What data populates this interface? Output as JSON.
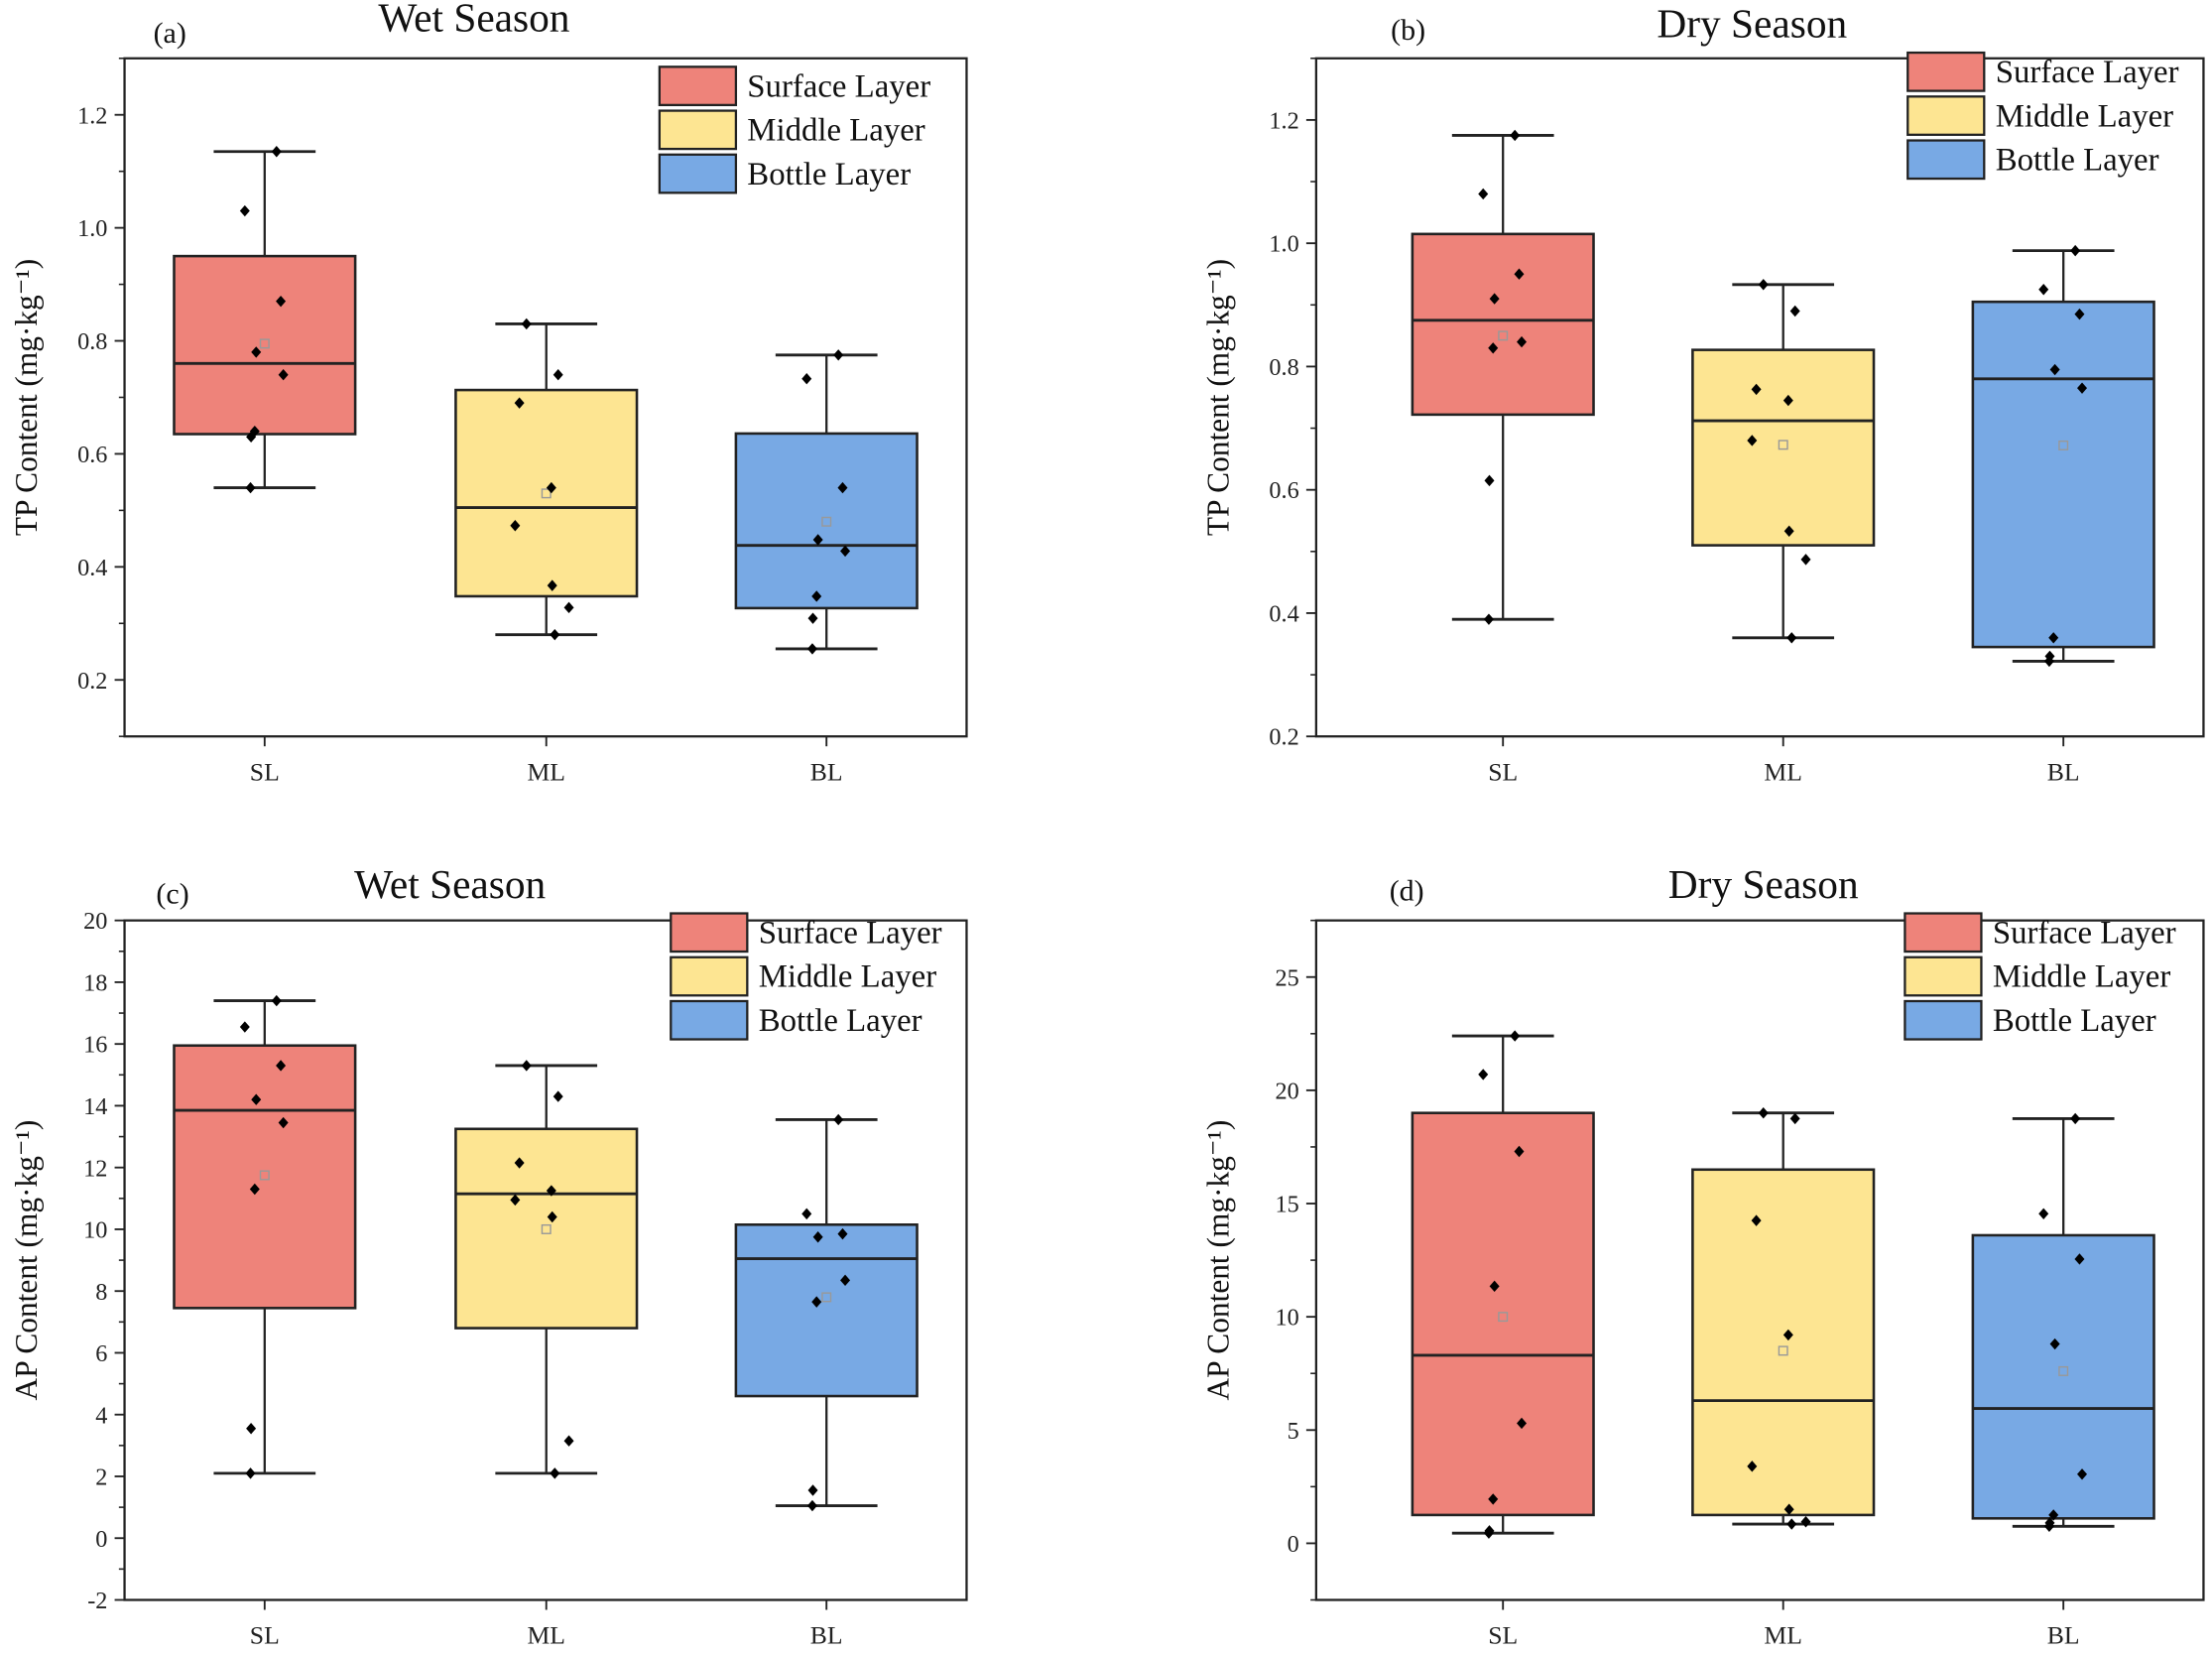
{
  "colors": {
    "SL": "#EE837A",
    "ML": "#FDE592",
    "BL": "#78A9E4",
    "mean": "#999999"
  },
  "legend": [
    "Surface Layer",
    "Middle Layer",
    "Bottle Layer"
  ],
  "chart_data": [
    {
      "type": "box",
      "panel": "(a)",
      "title": "Wet Season",
      "ylabel": "TP Content (mg·kg⁻¹)",
      "ylim": [
        0.1,
        1.3
      ],
      "yticks": [
        0.2,
        0.4,
        0.6,
        0.8,
        1.0,
        1.2
      ],
      "tick_decimals": 1,
      "categories": [
        "SL",
        "ML",
        "BL"
      ],
      "boxes": [
        {
          "min": 0.54,
          "q1": 0.635,
          "median": 0.76,
          "q3": 0.95,
          "max": 1.135,
          "mean": 0.795,
          "points": [
            1.135,
            1.03,
            0.87,
            0.78,
            0.74,
            0.64,
            0.63,
            0.54
          ]
        },
        {
          "min": 0.28,
          "q1": 0.348,
          "median": 0.505,
          "q3": 0.713,
          "max": 0.83,
          "mean": 0.53,
          "points": [
            0.83,
            0.74,
            0.69,
            0.54,
            0.473,
            0.367,
            0.328,
            0.28
          ]
        },
        {
          "min": 0.255,
          "q1": 0.327,
          "median": 0.438,
          "q3": 0.636,
          "max": 0.775,
          "mean": 0.48,
          "points": [
            0.775,
            0.733,
            0.54,
            0.448,
            0.428,
            0.348,
            0.309,
            0.255
          ]
        }
      ]
    },
    {
      "type": "box",
      "panel": "(b)",
      "title": "Dry Season",
      "ylabel": "TP Content (mg·kg⁻¹)",
      "ylim": [
        0.2,
        1.3
      ],
      "yticks": [
        0.2,
        0.4,
        0.6,
        0.8,
        1.0,
        1.2
      ],
      "tick_decimals": 1,
      "categories": [
        "SL",
        "ML",
        "BL"
      ],
      "boxes": [
        {
          "min": 0.39,
          "q1": 0.722,
          "median": 0.875,
          "q3": 1.015,
          "max": 1.175,
          "mean": 0.85,
          "points": [
            1.175,
            1.08,
            0.95,
            0.91,
            0.84,
            0.83,
            0.615,
            0.39
          ]
        },
        {
          "min": 0.36,
          "q1": 0.51,
          "median": 0.712,
          "q3": 0.827,
          "max": 0.933,
          "mean": 0.673,
          "points": [
            0.933,
            0.89,
            0.763,
            0.745,
            0.68,
            0.533,
            0.487,
            0.36
          ]
        },
        {
          "min": 0.322,
          "q1": 0.345,
          "median": 0.78,
          "q3": 0.905,
          "max": 0.988,
          "mean": 0.672,
          "points": [
            0.988,
            0.925,
            0.885,
            0.795,
            0.765,
            0.36,
            0.33,
            0.322
          ]
        }
      ]
    },
    {
      "type": "box",
      "panel": "(c)",
      "title": "Wet Season",
      "ylabel": "AP Content (mg·kg⁻¹)",
      "ylim": [
        -2,
        20
      ],
      "yticks": [
        -2,
        0,
        2,
        4,
        6,
        8,
        10,
        12,
        14,
        16,
        18,
        20
      ],
      "tick_decimals": 0,
      "categories": [
        "SL",
        "ML",
        "BL"
      ],
      "boxes": [
        {
          "min": 2.1,
          "q1": 7.45,
          "median": 13.85,
          "q3": 15.95,
          "max": 17.4,
          "mean": 11.75,
          "points": [
            17.4,
            16.55,
            15.3,
            14.2,
            13.45,
            11.3,
            3.55,
            2.1
          ]
        },
        {
          "min": 2.1,
          "q1": 6.8,
          "median": 11.15,
          "q3": 13.25,
          "max": 15.3,
          "mean": 10.0,
          "points": [
            15.3,
            14.3,
            12.15,
            11.25,
            10.95,
            10.4,
            3.15,
            2.1
          ]
        },
        {
          "min": 1.05,
          "q1": 4.6,
          "median": 9.05,
          "q3": 10.15,
          "max": 13.55,
          "mean": 7.8,
          "points": [
            13.55,
            10.5,
            9.85,
            9.75,
            8.35,
            7.65,
            1.55,
            1.05
          ]
        }
      ]
    },
    {
      "type": "box",
      "panel": "(d)",
      "title": "Dry Season",
      "ylabel": "AP Content (mg·kg⁻¹)",
      "ylim": [
        -2.5,
        27.5
      ],
      "yticks": [
        0,
        5,
        10,
        15,
        20,
        25
      ],
      "tick_decimals": 0,
      "categories": [
        "SL",
        "ML",
        "BL"
      ],
      "boxes": [
        {
          "min": 0.45,
          "q1": 1.25,
          "median": 8.3,
          "q3": 19.0,
          "max": 22.4,
          "mean": 10.0,
          "points": [
            22.4,
            20.7,
            17.3,
            11.35,
            5.3,
            1.95,
            0.55,
            0.45
          ]
        },
        {
          "min": 0.85,
          "q1": 1.25,
          "median": 6.3,
          "q3": 16.5,
          "max": 19.0,
          "mean": 8.5,
          "points": [
            19.0,
            18.75,
            14.25,
            9.2,
            3.4,
            1.5,
            0.95,
            0.85
          ]
        },
        {
          "min": 0.75,
          "q1": 1.1,
          "median": 5.95,
          "q3": 13.6,
          "max": 18.75,
          "mean": 7.6,
          "points": [
            18.75,
            14.55,
            12.55,
            8.8,
            3.05,
            1.25,
            0.9,
            0.75
          ]
        }
      ]
    }
  ]
}
